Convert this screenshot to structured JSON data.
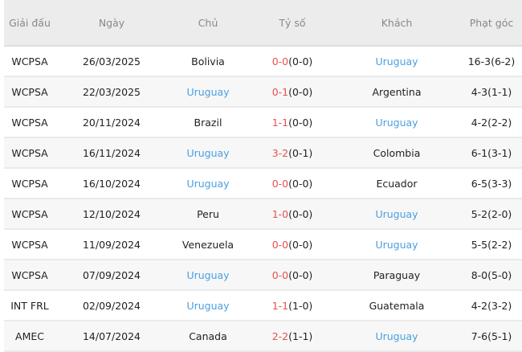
{
  "headers": [
    "Giải đấu",
    "Ngày",
    "Chủ",
    "Tỷ số",
    "Khách",
    "Phạt góc"
  ],
  "colors": {
    "highlight_team": "#4a9fe0",
    "score": "#e55050"
  },
  "rows": [
    {
      "league": "WCPSA",
      "date": "26/03/2025",
      "home": "Bolivia",
      "home_hl": false,
      "score": "0-0",
      "ht": "(0-0)",
      "away": "Uruguay",
      "away_hl": true,
      "corners": "16-3(6-2)"
    },
    {
      "league": "WCPSA",
      "date": "22/03/2025",
      "home": "Uruguay",
      "home_hl": true,
      "score": "0-1",
      "ht": "(0-0)",
      "away": "Argentina",
      "away_hl": false,
      "corners": "4-3(1-1)"
    },
    {
      "league": "WCPSA",
      "date": "20/11/2024",
      "home": "Brazil",
      "home_hl": false,
      "score": "1-1",
      "ht": "(0-0)",
      "away": "Uruguay",
      "away_hl": true,
      "corners": "4-2(2-2)"
    },
    {
      "league": "WCPSA",
      "date": "16/11/2024",
      "home": "Uruguay",
      "home_hl": true,
      "score": "3-2",
      "ht": "(0-1)",
      "away": "Colombia",
      "away_hl": false,
      "corners": "6-1(3-1)"
    },
    {
      "league": "WCPSA",
      "date": "16/10/2024",
      "home": "Uruguay",
      "home_hl": true,
      "score": "0-0",
      "ht": "(0-0)",
      "away": "Ecuador",
      "away_hl": false,
      "corners": "6-5(3-3)"
    },
    {
      "league": "WCPSA",
      "date": "12/10/2024",
      "home": "Peru",
      "home_hl": false,
      "score": "1-0",
      "ht": "(0-0)",
      "away": "Uruguay",
      "away_hl": true,
      "corners": "5-2(2-0)"
    },
    {
      "league": "WCPSA",
      "date": "11/09/2024",
      "home": "Venezuela",
      "home_hl": false,
      "score": "0-0",
      "ht": "(0-0)",
      "away": "Uruguay",
      "away_hl": true,
      "corners": "5-5(2-2)"
    },
    {
      "league": "WCPSA",
      "date": "07/09/2024",
      "home": "Uruguay",
      "home_hl": true,
      "score": "0-0",
      "ht": "(0-0)",
      "away": "Paraguay",
      "away_hl": false,
      "corners": "8-0(5-0)"
    },
    {
      "league": "INT FRL",
      "date": "02/09/2024",
      "home": "Uruguay",
      "home_hl": true,
      "score": "1-1",
      "ht": "(1-0)",
      "away": "Guatemala",
      "away_hl": false,
      "corners": "4-2(3-2)"
    },
    {
      "league": "AMEC",
      "date": "14/07/2024",
      "home": "Canada",
      "home_hl": false,
      "score": "2-2",
      "ht": "(1-1)",
      "away": "Uruguay",
      "away_hl": true,
      "corners": "7-6(5-1)"
    }
  ]
}
